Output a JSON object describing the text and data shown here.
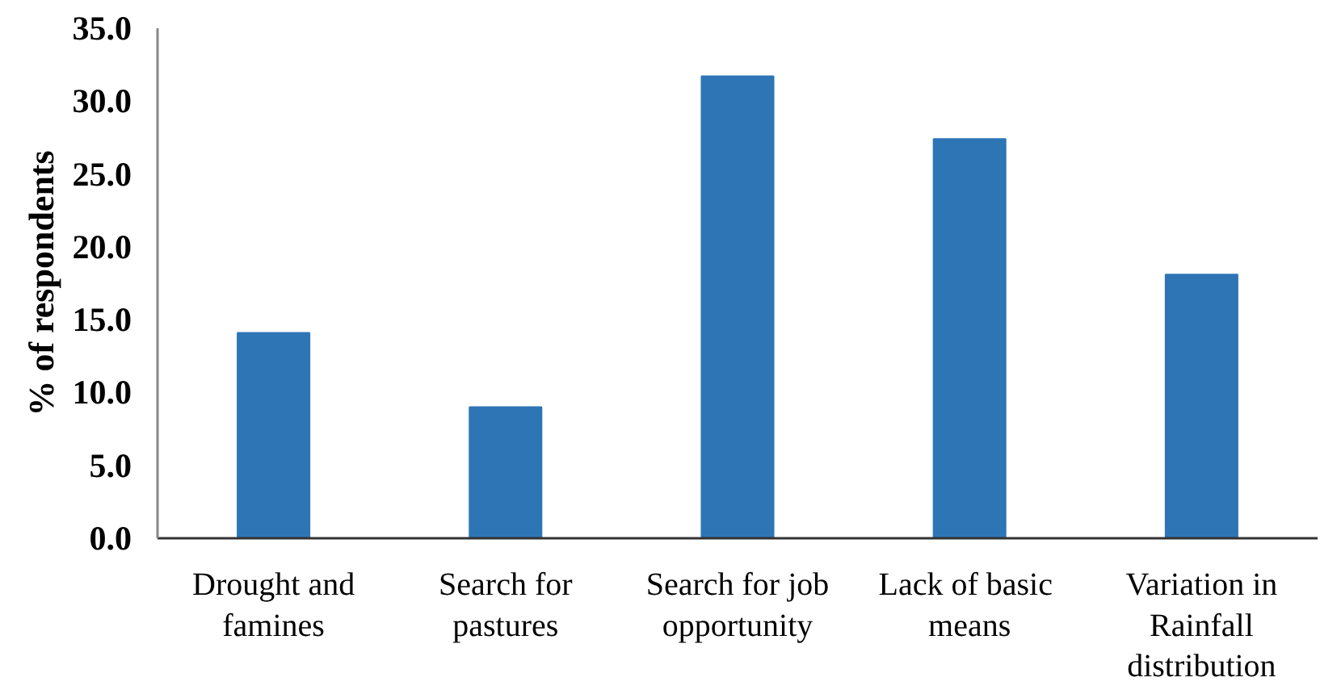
{
  "chart_data": {
    "type": "bar",
    "ylabel": "% of respondents",
    "categories": [
      "Drought and famines",
      "Search for pastures",
      "Search for job opportunity",
      "Lack  of basic means",
      "Variation in Rainfall distribution"
    ],
    "values": [
      14.1,
      9.0,
      31.7,
      27.4,
      18.1
    ],
    "color": "#2e75b6",
    "ylim": [
      0,
      35
    ],
    "yticks": [
      {
        "value": 0,
        "label": "0.0"
      },
      {
        "value": 5,
        "label": "5.0"
      },
      {
        "value": 10,
        "label": "10.0"
      },
      {
        "value": 15,
        "label": "15.0"
      },
      {
        "value": 20,
        "label": "20.0"
      },
      {
        "value": 25,
        "label": "25.0"
      },
      {
        "value": 30,
        "label": "30.0"
      },
      {
        "value": 35,
        "label": "35.0"
      }
    ]
  }
}
